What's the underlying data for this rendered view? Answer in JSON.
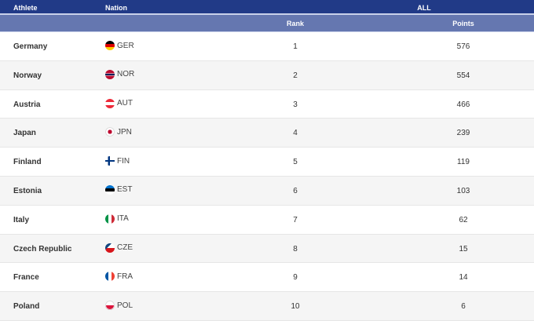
{
  "header": {
    "athlete": "Athlete",
    "nation": "Nation",
    "group": "ALL",
    "rank": "Rank",
    "points": "Points"
  },
  "rows": [
    {
      "athlete": "Germany",
      "nation": "GER",
      "flag": "linear-gradient(#000 33%,#dd0000 33% 66%,#ffce00 66%)",
      "rank": "1",
      "points": "576"
    },
    {
      "athlete": "Norway",
      "nation": "NOR",
      "flag": "linear-gradient(#ba0c2f 38%,#fff 38% 42%,#00205b 42% 58%,#fff 58% 62%,#ba0c2f 62%)",
      "rank": "2",
      "points": "554"
    },
    {
      "athlete": "Austria",
      "nation": "AUT",
      "flag": "linear-gradient(#ed2939 33%,#fff 33% 66%,#ed2939 66%)",
      "rank": "3",
      "points": "466"
    },
    {
      "athlete": "Japan",
      "nation": "JPN",
      "flag": "radial-gradient(circle,#bc002d 30%,#fff 32%)",
      "rank": "4",
      "points": "239"
    },
    {
      "athlete": "Finland",
      "nation": "FIN",
      "flag": "linear-gradient(90deg,transparent 30%,#003580 30% 48%,transparent 48%),linear-gradient(#fff 40%,#003580 40% 60%,#fff 60%)",
      "rank": "5",
      "points": "119"
    },
    {
      "athlete": "Estonia",
      "nation": "EST",
      "flag": "linear-gradient(#0072ce 33%,#000 33% 66%,#fff 66%)",
      "rank": "6",
      "points": "103"
    },
    {
      "athlete": "Italy",
      "nation": "ITA",
      "flag": "linear-gradient(90deg,#009246 33%,#fff 33% 66%,#ce2b37 66%)",
      "rank": "7",
      "points": "62"
    },
    {
      "athlete": "Czech Republic",
      "nation": "CZE",
      "flag": "linear-gradient(135deg,#11457e 35%,transparent 35%),linear-gradient(#fff 50%,#d7141a 50%)",
      "rank": "8",
      "points": "15"
    },
    {
      "athlete": "France",
      "nation": "FRA",
      "flag": "linear-gradient(90deg,#0055a4 33%,#fff 33% 66%,#ef4135 66%)",
      "rank": "9",
      "points": "14"
    },
    {
      "athlete": "Poland",
      "nation": "POL",
      "flag": "linear-gradient(#fff 50%,#dc143c 50%)",
      "rank": "10",
      "points": "6"
    }
  ]
}
